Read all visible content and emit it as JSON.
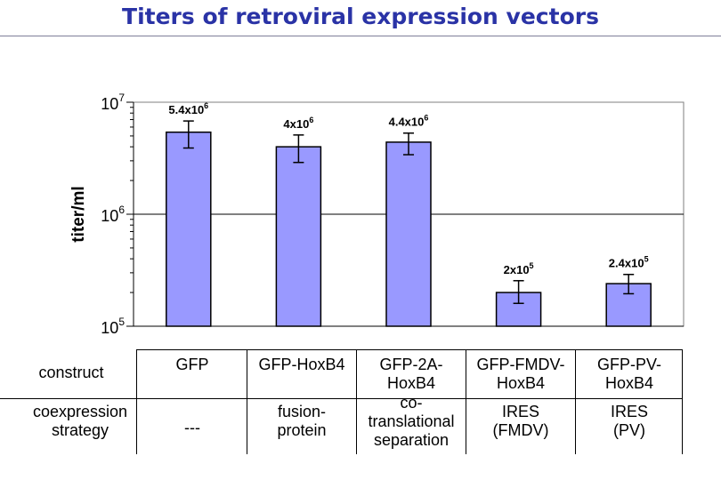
{
  "title": "Titers of retroviral expression vectors",
  "chart_data": {
    "type": "bar",
    "title": "Titers of retroviral expression vectors",
    "ylabel": "titer/ml",
    "xlabel": "",
    "yscale": "log",
    "ytick_labels": [
      {
        "base": "10",
        "exp": "7"
      },
      {
        "base": "10",
        "exp": "6"
      },
      {
        "base": "10",
        "exp": "5"
      }
    ],
    "categories": [
      "GFP",
      "GFP-HoxB4",
      "GFP-2A-HoxB4",
      "GFP-FMDV-HoxB4",
      "GFP-PV-HoxB4"
    ],
    "values": [
      5400000,
      4000000,
      4400000,
      200000,
      240000
    ],
    "error_low": [
      3900000,
      2900000,
      3400000,
      160000,
      195000
    ],
    "error_high": [
      6800000,
      5100000,
      5300000,
      255000,
      290000
    ],
    "data_labels": [
      {
        "mant": "5.4x10",
        "exp": "6"
      },
      {
        "mant": "4x10",
        "exp": "6"
      },
      {
        "mant": "4.4x10",
        "exp": "6"
      },
      {
        "mant": "2x10",
        "exp": "5"
      },
      {
        "mant": "2.4x10",
        "exp": "5"
      }
    ],
    "bar_color": "#9999ff",
    "grid": true,
    "legend": "none"
  },
  "table": {
    "row_labels": [
      "construct",
      "coexpression strategy"
    ],
    "construct": [
      "GFP",
      "GFP-HoxB4",
      "GFP-2A-HoxB4",
      "GFP-FMDV-HoxB4",
      "GFP-PV-HoxB4"
    ],
    "strategy": [
      "---",
      "fusion-protein",
      "co-translational separation",
      "IRES (FMDV)",
      "IRES (PV)"
    ]
  }
}
